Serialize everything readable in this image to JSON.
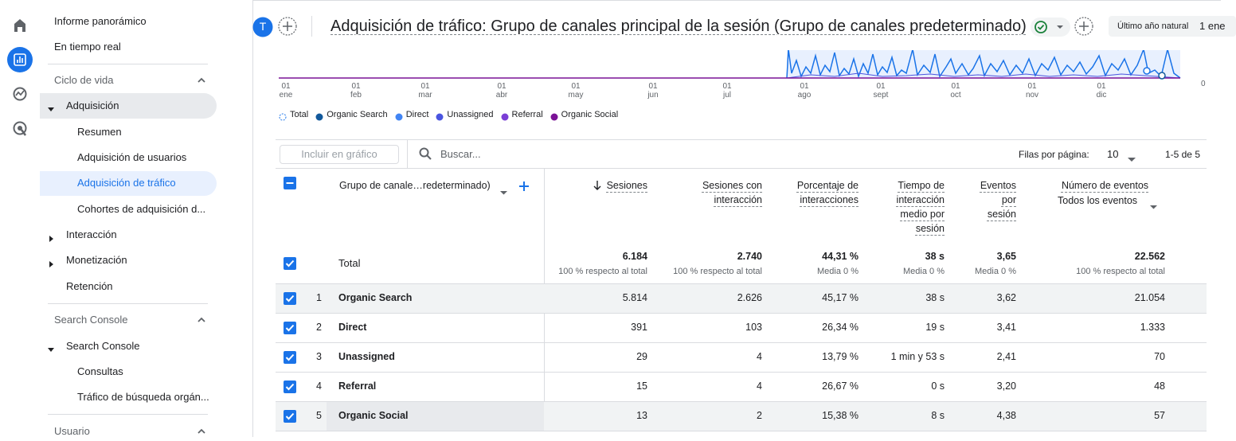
{
  "sidebar": {
    "items": [
      "Informe panorámico",
      "En tiempo real",
      "Ciclo de vida",
      "Adquisición",
      "Resumen",
      "Adquisición de usuarios",
      "Adquisición de tráfico",
      "Cohortes de adquisición d...",
      "Interacción",
      "Monetización",
      "Retención",
      "Search Console",
      "Search Console",
      "Consultas",
      "Tráfico de búsqueda orgán...",
      "Usuario"
    ]
  },
  "header": {
    "avatar": "T",
    "title": "Adquisición de tráfico: Grupo de canales principal de la sesión (Grupo de canales predeterminado)",
    "date_range_label": "Último año natural",
    "date_start": "1 ene"
  },
  "chart": {
    "x_labels": [
      [
        "01",
        "ene"
      ],
      [
        "01",
        "feb"
      ],
      [
        "01",
        "mar"
      ],
      [
        "01",
        "abr"
      ],
      [
        "01",
        "may"
      ],
      [
        "01",
        "jun"
      ],
      [
        "01",
        "jul"
      ],
      [
        "01",
        "ago"
      ],
      [
        "01",
        "sept"
      ],
      [
        "01",
        "oct"
      ],
      [
        "01",
        "nov"
      ],
      [
        "01",
        "dic"
      ]
    ],
    "y_label": "0",
    "legend": [
      {
        "name": "Total",
        "color": "#1a73e8"
      },
      {
        "name": "Organic Search",
        "color": "#12599c"
      },
      {
        "name": "Direct",
        "color": "#4285f4"
      },
      {
        "name": "Unassigned",
        "color": "#4a55e0"
      },
      {
        "name": "Referral",
        "color": "#7b3fd6"
      },
      {
        "name": "Organic Social",
        "color": "#7a1296"
      }
    ]
  },
  "table": {
    "filter_placeholder": "Incluir en gráfico",
    "search_placeholder": "Buscar...",
    "rows_per_page_label": "Filas por página:",
    "rows_per_page": 10,
    "pagination": "1-5 de 5",
    "dimension_header": "Grupo de canale…redeterminado)",
    "columns": [
      "Sesiones",
      "Sesiones con interacción",
      "Porcentaje de interacciones",
      "Tiempo de interacción medio por sesión",
      "Eventos por sesión",
      "Número de eventos"
    ],
    "events_filter": "Todos los eventos",
    "total": {
      "label": "Total",
      "values": [
        "6.184",
        "2.740",
        "44,31 %",
        "38 s",
        "3,65",
        "22.562"
      ],
      "notes": [
        "100 % respecto al total",
        "100 % respecto al total",
        "Media 0 %",
        "Media 0 %",
        "Media 0 %",
        "100 % respecto al total"
      ]
    },
    "rows": [
      {
        "index": "1",
        "name": "Organic Search",
        "values": [
          "5.814",
          "2.626",
          "45,17 %",
          "38 s",
          "3,62",
          "21.054"
        ]
      },
      {
        "index": "2",
        "name": "Direct",
        "values": [
          "391",
          "103",
          "26,34 %",
          "19 s",
          "3,41",
          "1.333"
        ]
      },
      {
        "index": "3",
        "name": "Unassigned",
        "values": [
          "29",
          "4",
          "13,79 %",
          "1 min y 53 s",
          "2,41",
          "70"
        ]
      },
      {
        "index": "4",
        "name": "Referral",
        "values": [
          "15",
          "4",
          "26,67 %",
          "0 s",
          "3,20",
          "48"
        ]
      },
      {
        "index": "5",
        "name": "Organic Social",
        "values": [
          "13",
          "2",
          "15,38 %",
          "8 s",
          "4,38",
          "57"
        ]
      }
    ]
  }
}
